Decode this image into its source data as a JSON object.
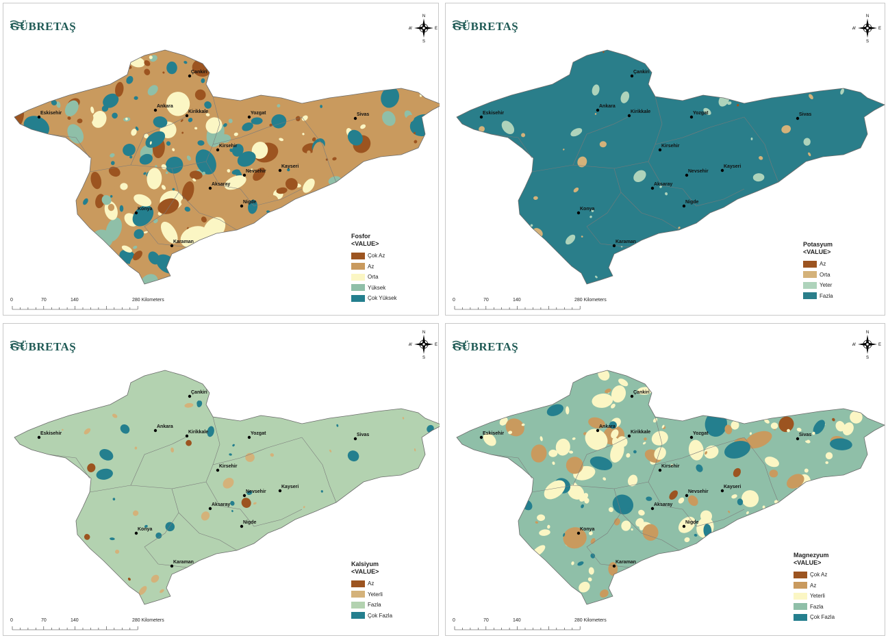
{
  "brand": "GÜBRETAŞ",
  "compass": {
    "n": "N",
    "s": "S",
    "e": "E",
    "w": "W"
  },
  "scale": {
    "ticks": [
      "0",
      "70",
      "140",
      "280 Kilometers"
    ]
  },
  "cities": [
    "Çankiri",
    "Ankara",
    "Kirikkale",
    "Eskisehir",
    "Yozgat",
    "Sivas",
    "Kirsehir",
    "Nevsehir",
    "Kayseri",
    "Aksaray",
    "Nigde",
    "Konya",
    "Karaman"
  ],
  "panels": [
    {
      "id": "fosfor",
      "legend_title": "Fosfor",
      "legend_sub": "<VALUE>",
      "classes": [
        {
          "label": "Çok Az",
          "color": "#9c5420"
        },
        {
          "label": "Az",
          "color": "#c99a5e"
        },
        {
          "label": "Orta",
          "color": "#fbf6c4"
        },
        {
          "label": "Yüksek",
          "color": "#8fbfa8"
        },
        {
          "label": "Çok Yüksek",
          "color": "#247f8e"
        }
      ],
      "base_color": "#c99a5e"
    },
    {
      "id": "potasyum",
      "legend_title": "Potasyum",
      "legend_sub": "<VALUE>",
      "classes": [
        {
          "label": "Az",
          "color": "#9c5420"
        },
        {
          "label": "Orta",
          "color": "#d4b27a"
        },
        {
          "label": "Yeter",
          "color": "#aed3bb"
        },
        {
          "label": "Fazla",
          "color": "#2a7e8a"
        }
      ],
      "base_color": "#2a7e8a"
    },
    {
      "id": "kalsiyum",
      "legend_title": "Kalsiyum",
      "legend_sub": "<VALUE>",
      "classes": [
        {
          "label": "Az",
          "color": "#9c5420"
        },
        {
          "label": "Yeterli",
          "color": "#d4b27a"
        },
        {
          "label": "Fazla",
          "color": "#b3d2b0"
        },
        {
          "label": "Çok Fazla",
          "color": "#247f8e"
        }
      ],
      "base_color": "#b3d2b0"
    },
    {
      "id": "magnezyum",
      "legend_title": "Magnezyum",
      "legend_sub": "<VALUE>",
      "classes": [
        {
          "label": "Çok Az",
          "color": "#9c5420"
        },
        {
          "label": "Az",
          "color": "#c99a5e"
        },
        {
          "label": "Yeterli",
          "color": "#fbf6c4"
        },
        {
          "label": "Fazla",
          "color": "#8fbfa8"
        },
        {
          "label": "Çok Fazla",
          "color": "#247f8e"
        }
      ],
      "base_color": "#8fbfa8"
    }
  ]
}
